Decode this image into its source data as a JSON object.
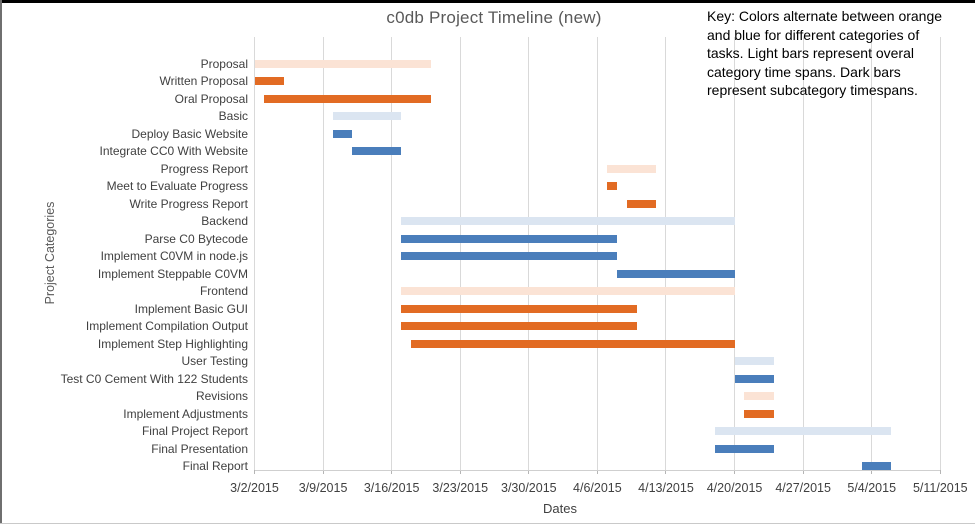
{
  "chart_data": {
    "type": "gantt",
    "title": "c0db Project Timeline (new)",
    "xlabel": "Dates",
    "ylabel": "Project Categories",
    "x_range": [
      "3/2/2015",
      "5/11/2015"
    ],
    "x_ticks": [
      "3/2/2015",
      "3/9/2015",
      "3/16/2015",
      "3/23/2015",
      "3/30/2015",
      "4/6/2015",
      "4/13/2015",
      "4/20/2015",
      "4/27/2015",
      "5/4/2015",
      "5/11/2015"
    ],
    "grid": "vertical-weekly",
    "key_note_lines": [
      "Key: Colors alternate between orange",
      "and blue for different categories of",
      "tasks. Light bars represent overal",
      "category time spans. Dark bars",
      "represent subcategory timespans."
    ],
    "colors": {
      "light_orange": "#FBE3D5",
      "dark_orange": "#E26B23",
      "light_blue": "#DBE5F1",
      "dark_blue": "#4A7EBB",
      "gridline": "#D9D9D9",
      "title_text": "#595959",
      "axis_text": "#404040"
    },
    "tasks": [
      {
        "label": "Proposal",
        "start": "3/2/2015",
        "end": "3/20/2015",
        "shade": "light",
        "hue": "orange"
      },
      {
        "label": "Written Proposal",
        "start": "3/2/2015",
        "end": "3/5/2015",
        "shade": "dark",
        "hue": "orange"
      },
      {
        "label": "Oral Proposal",
        "start": "3/3/2015",
        "end": "3/20/2015",
        "shade": "dark",
        "hue": "orange"
      },
      {
        "label": "Basic",
        "start": "3/10/2015",
        "end": "3/17/2015",
        "shade": "light",
        "hue": "blue"
      },
      {
        "label": "Deploy Basic Website",
        "start": "3/10/2015",
        "end": "3/12/2015",
        "shade": "dark",
        "hue": "blue"
      },
      {
        "label": "Integrate CC0 With Website",
        "start": "3/12/2015",
        "end": "3/17/2015",
        "shade": "dark",
        "hue": "blue"
      },
      {
        "label": "Progress Report",
        "start": "4/7/2015",
        "end": "4/12/2015",
        "shade": "light",
        "hue": "orange"
      },
      {
        "label": "Meet to Evaluate Progress",
        "start": "4/7/2015",
        "end": "4/8/2015",
        "shade": "dark",
        "hue": "orange"
      },
      {
        "label": "Write Progress Report",
        "start": "4/9/2015",
        "end": "4/12/2015",
        "shade": "dark",
        "hue": "orange"
      },
      {
        "label": "Backend",
        "start": "3/17/2015",
        "end": "4/20/2015",
        "shade": "light",
        "hue": "blue"
      },
      {
        "label": "Parse C0 Bytecode",
        "start": "3/17/2015",
        "end": "4/8/2015",
        "shade": "dark",
        "hue": "blue"
      },
      {
        "label": "Implement C0VM in node.js",
        "start": "3/17/2015",
        "end": "4/8/2015",
        "shade": "dark",
        "hue": "blue"
      },
      {
        "label": "Implement Steppable C0VM",
        "start": "4/8/2015",
        "end": "4/20/2015",
        "shade": "dark",
        "hue": "blue"
      },
      {
        "label": "Frontend",
        "start": "3/17/2015",
        "end": "4/20/2015",
        "shade": "light",
        "hue": "orange"
      },
      {
        "label": "Implement Basic GUI",
        "start": "3/17/2015",
        "end": "4/10/2015",
        "shade": "dark",
        "hue": "orange"
      },
      {
        "label": "Implement Compilation Output",
        "start": "3/17/2015",
        "end": "4/10/2015",
        "shade": "dark",
        "hue": "orange"
      },
      {
        "label": "Implement Step Highlighting",
        "start": "3/18/2015",
        "end": "4/20/2015",
        "shade": "dark",
        "hue": "orange"
      },
      {
        "label": "User Testing",
        "start": "4/20/2015",
        "end": "4/24/2015",
        "shade": "light",
        "hue": "blue"
      },
      {
        "label": "Test C0 Cement With 122 Students",
        "start": "4/20/2015",
        "end": "4/24/2015",
        "shade": "dark",
        "hue": "blue"
      },
      {
        "label": "Revisions",
        "start": "4/21/2015",
        "end": "4/24/2015",
        "shade": "light",
        "hue": "orange"
      },
      {
        "label": "Implement Adjustments",
        "start": "4/21/2015",
        "end": "4/24/2015",
        "shade": "dark",
        "hue": "orange"
      },
      {
        "label": "Final Project Report",
        "start": "4/18/2015",
        "end": "5/6/2015",
        "shade": "light",
        "hue": "blue"
      },
      {
        "label": "Final Presentation",
        "start": "4/18/2015",
        "end": "4/24/2015",
        "shade": "dark",
        "hue": "blue"
      },
      {
        "label": "Final Report",
        "start": "5/3/2015",
        "end": "5/6/2015",
        "shade": "dark",
        "hue": "blue"
      }
    ]
  }
}
